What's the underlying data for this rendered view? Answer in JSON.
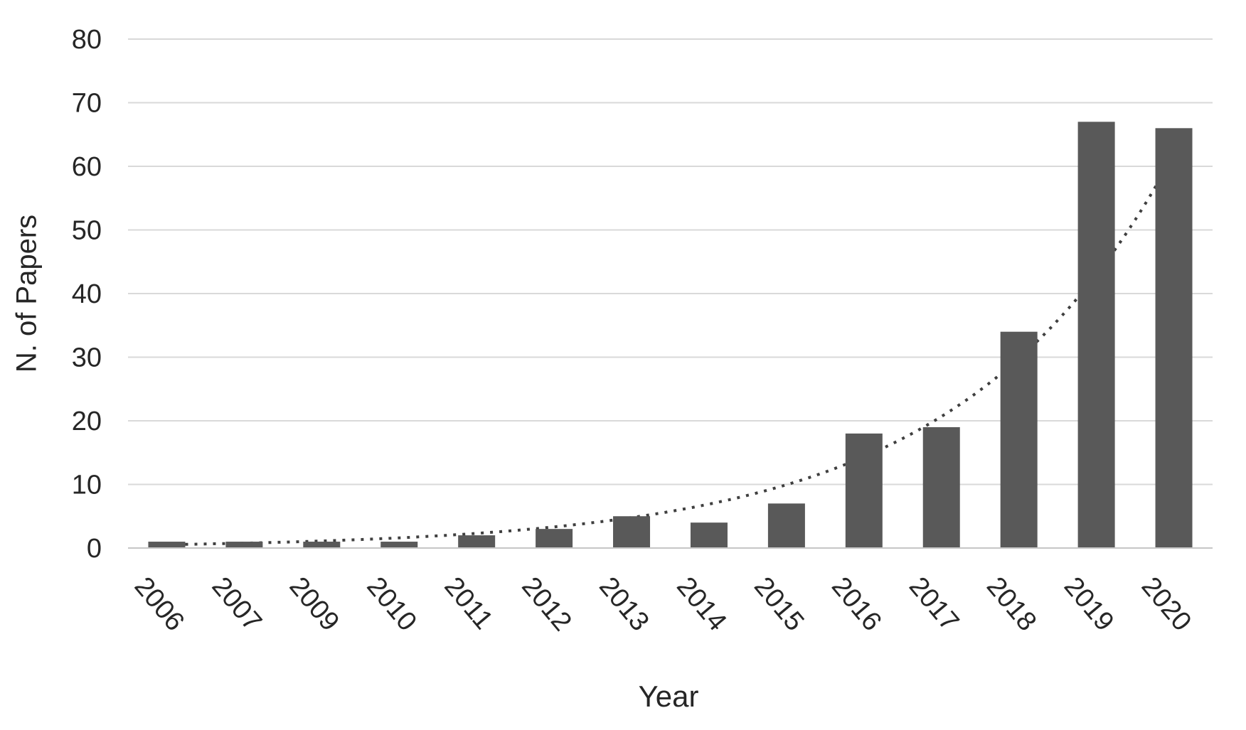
{
  "page": {
    "background": "#ffffff"
  },
  "chart_data": {
    "type": "bar",
    "title": "",
    "xlabel": "Year",
    "ylabel": "N. of Papers",
    "categories": [
      "2006",
      "2007",
      "2009",
      "2010",
      "2011",
      "2012",
      "2013",
      "2014",
      "2015",
      "2016",
      "2017",
      "2018",
      "2019",
      "2020"
    ],
    "values": [
      1,
      1,
      1,
      1,
      2,
      3,
      5,
      4,
      7,
      18,
      19,
      34,
      67,
      66
    ],
    "ylim": [
      0,
      80
    ],
    "ytick_step": 10,
    "yticks": [
      0,
      10,
      20,
      30,
      40,
      50,
      60,
      70,
      80
    ],
    "grid": true,
    "legend_position": "none",
    "bar_color": "#595959",
    "gridline_color": "#d9d9d9",
    "axis_line_color": "#c6c6c6",
    "text_color": "#262626",
    "trendline": {
      "type": "exponential",
      "style": "dotted",
      "color": "#3f3f3f"
    }
  }
}
